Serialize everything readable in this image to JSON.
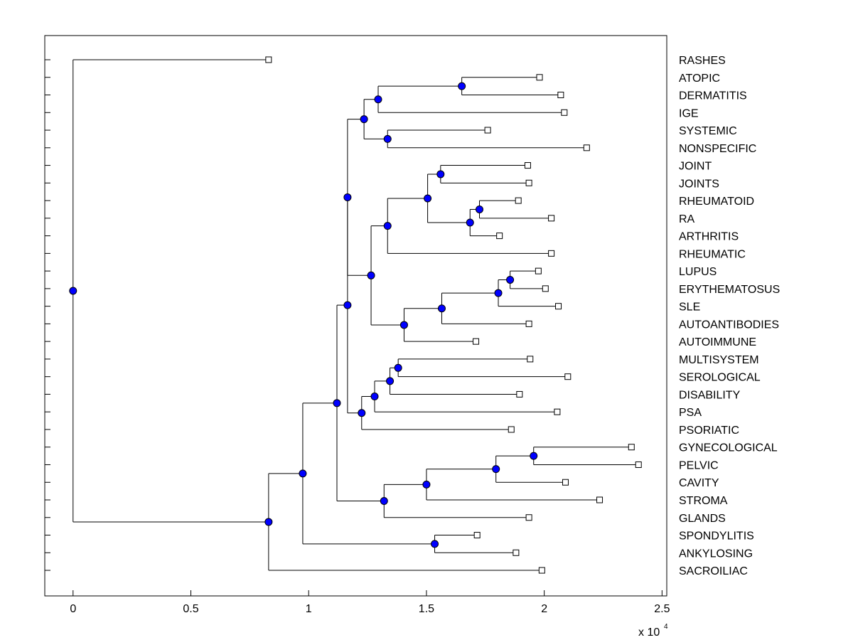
{
  "chart_data": {
    "type": "dendrogram",
    "title": "",
    "xlabel": "",
    "ylabel": "",
    "axis_multiplier": "x 10",
    "axis_multiplier_exponent": "4",
    "xlim": [
      -1200,
      25200
    ],
    "xticks": [
      0,
      5000,
      10000,
      15000,
      20000,
      25000
    ],
    "xtick_labels": [
      "0",
      "0.5",
      "1",
      "1.5",
      "2",
      "2.5"
    ],
    "leaves": [
      {
        "label": "RASHES",
        "x": 8300
      },
      {
        "label": "ATOPIC",
        "x": 19800
      },
      {
        "label": "DERMATITIS",
        "x": 20700
      },
      {
        "label": "IGE",
        "x": 20850
      },
      {
        "label": "SYSTEMIC",
        "x": 17600
      },
      {
        "label": "NONSPECIFIC",
        "x": 21800
      },
      {
        "label": "JOINT",
        "x": 19300
      },
      {
        "label": "JOINTS",
        "x": 19350
      },
      {
        "label": "RHEUMATOID",
        "x": 18900
      },
      {
        "label": "RA",
        "x": 20300
      },
      {
        "label": "ARTHRITIS",
        "x": 18100
      },
      {
        "label": "RHEUMATIC",
        "x": 20300
      },
      {
        "label": "LUPUS",
        "x": 19750
      },
      {
        "label": "ERYTHEMATOSUS",
        "x": 20050
      },
      {
        "label": "SLE",
        "x": 20600
      },
      {
        "label": "AUTOANTIBODIES",
        "x": 19350
      },
      {
        "label": "AUTOIMMUNE",
        "x": 17100
      },
      {
        "label": "MULTISYSTEM",
        "x": 19400
      },
      {
        "label": "SEROLOGICAL",
        "x": 21000
      },
      {
        "label": "DISABILITY",
        "x": 18950
      },
      {
        "label": "PSA",
        "x": 20550
      },
      {
        "label": "PSORIATIC",
        "x": 18600
      },
      {
        "label": "GYNECOLOGICAL",
        "x": 23700
      },
      {
        "label": "PELVIC",
        "x": 24000
      },
      {
        "label": "CAVITY",
        "x": 20900
      },
      {
        "label": "STROMA",
        "x": 22350
      },
      {
        "label": "GLANDS",
        "x": 19350
      },
      {
        "label": "SPONDYLITIS",
        "x": 17150
      },
      {
        "label": "ANKYLOSING",
        "x": 18800
      },
      {
        "label": "SACROILIAC",
        "x": 19900
      }
    ],
    "merges": [
      {
        "id": "m1",
        "x": 16500,
        "children": [
          "ATOPIC",
          "DERMATITIS"
        ]
      },
      {
        "id": "m2",
        "x": 12950,
        "children": [
          "m1",
          "IGE"
        ]
      },
      {
        "id": "m3",
        "x": 13350,
        "children": [
          "SYSTEMIC",
          "NONSPECIFIC"
        ]
      },
      {
        "id": "m4",
        "x": 12350,
        "children": [
          "m2",
          "m3"
        ]
      },
      {
        "id": "m5",
        "x": 15600,
        "children": [
          "JOINT",
          "JOINTS"
        ]
      },
      {
        "id": "m6",
        "x": 17250,
        "children": [
          "RHEUMATOID",
          "RA"
        ]
      },
      {
        "id": "m7",
        "x": 16850,
        "children": [
          "m6",
          "ARTHRITIS"
        ]
      },
      {
        "id": "m8",
        "x": 15050,
        "children": [
          "m5",
          "m7"
        ]
      },
      {
        "id": "m9",
        "x": 13350,
        "children": [
          "m8",
          "RHEUMATIC"
        ]
      },
      {
        "id": "m10",
        "x": 18550,
        "children": [
          "LUPUS",
          "ERYTHEMATOSUS"
        ]
      },
      {
        "id": "m11",
        "x": 18050,
        "children": [
          "m10",
          "SLE"
        ]
      },
      {
        "id": "m12",
        "x": 15650,
        "children": [
          "m11",
          "AUTOANTIBODIES"
        ]
      },
      {
        "id": "m13",
        "x": 14050,
        "children": [
          "m12",
          "AUTOIMMUNE"
        ]
      },
      {
        "id": "m14",
        "x": 12650,
        "children": [
          "m9",
          "m13"
        ]
      },
      {
        "id": "m15",
        "x": 11650,
        "children": [
          "m4",
          "m14"
        ]
      },
      {
        "id": "m16",
        "x": 13800,
        "children": [
          "MULTISYSTEM",
          "SEROLOGICAL"
        ]
      },
      {
        "id": "m17",
        "x": 13450,
        "children": [
          "m16",
          "DISABILITY"
        ]
      },
      {
        "id": "m18",
        "x": 12800,
        "children": [
          "m17",
          "PSA"
        ]
      },
      {
        "id": "m19",
        "x": 12250,
        "children": [
          "m18",
          "PSORIATIC"
        ]
      },
      {
        "id": "m20",
        "x": 11650,
        "children": [
          "m15",
          "m19"
        ]
      },
      {
        "id": "m21",
        "x": 19550,
        "children": [
          "GYNECOLOGICAL",
          "PELVIC"
        ]
      },
      {
        "id": "m22",
        "x": 17950,
        "children": [
          "m21",
          "CAVITY"
        ]
      },
      {
        "id": "m23",
        "x": 15000,
        "children": [
          "m22",
          "STROMA"
        ]
      },
      {
        "id": "m24",
        "x": 13200,
        "children": [
          "m23",
          "GLANDS"
        ]
      },
      {
        "id": "m25",
        "x": 11200,
        "children": [
          "m20",
          "m24"
        ]
      },
      {
        "id": "m26",
        "x": 15350,
        "children": [
          "SPONDYLITIS",
          "ANKYLOSING"
        ]
      },
      {
        "id": "m27",
        "x": 9750,
        "children": [
          "m25",
          "m26"
        ]
      },
      {
        "id": "m28",
        "x": 8300,
        "children": [
          "m27",
          "SACROILIAC"
        ]
      },
      {
        "id": "m29",
        "x": 0,
        "children": [
          "RASHES",
          "m28"
        ]
      }
    ],
    "node_color": "#0000ff"
  }
}
